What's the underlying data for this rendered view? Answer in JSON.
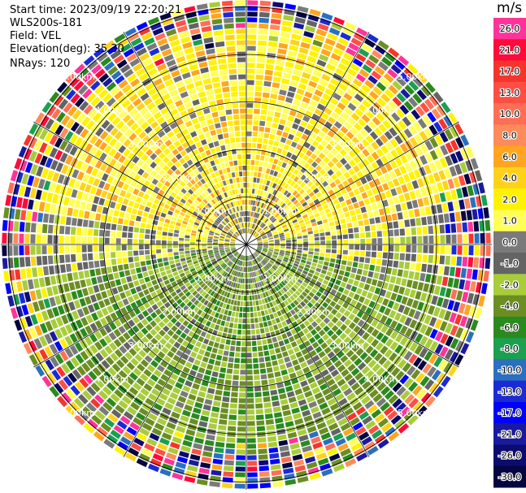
{
  "header": {
    "start_time": "Start time: 2023/09/19 22:20:21",
    "instrument": "WLS200s-181",
    "field": "Field: VEL",
    "elevation": "Elevation(deg): 35.30",
    "nrays": "NRays: 120"
  },
  "colorbar": {
    "unit": "m/s",
    "levels": [
      {
        "label": "26.0",
        "color": "#ff3399"
      },
      {
        "label": "21.0",
        "color": "#ff0a3a"
      },
      {
        "label": "17.0",
        "color": "#f5352c"
      },
      {
        "label": "13.0",
        "color": "#ff4f44"
      },
      {
        "label": "10.0",
        "color": "#ff6e55"
      },
      {
        "label": "8.0",
        "color": "#ff8a5a"
      },
      {
        "label": "6.0",
        "color": "#ffa51f"
      },
      {
        "label": "4.0",
        "color": "#ffd21a"
      },
      {
        "label": "2.0",
        "color": "#fff200"
      },
      {
        "label": "1.0",
        "color": "#ffff55"
      },
      {
        "label": "0.0",
        "color": "#7a7a7a"
      },
      {
        "label": "-1.0",
        "color": "#646464"
      },
      {
        "label": "-2.0",
        "color": "#a8cc3a"
      },
      {
        "label": "-4.0",
        "color": "#6b8e23"
      },
      {
        "label": "-6.0",
        "color": "#2b8a1e"
      },
      {
        "label": "-8.0",
        "color": "#1aa050"
      },
      {
        "label": "-10.0",
        "color": "#2b6fc0"
      },
      {
        "label": "-13.0",
        "color": "#1a2bd6"
      },
      {
        "label": "-17.0",
        "color": "#0000ff"
      },
      {
        "label": "-21.0",
        "color": "#1a1aa0"
      },
      {
        "label": "-26.0",
        "color": "#0b0b70"
      },
      {
        "label": "-30.0",
        "color": "#050540"
      }
    ]
  },
  "chart_data": {
    "type": "heatmap",
    "projection": "polar-ppi",
    "field": "VEL",
    "units": "m/s",
    "nrays": 120,
    "max_range_km": 6.5,
    "range_rings_km": [
      1.0,
      2.0,
      3.0,
      4.0,
      5.0
    ],
    "ring_labels": [
      "1.00km",
      "2.00km",
      "3.00km",
      "4.00km",
      "5.00km"
    ],
    "spokes_deg": [
      0,
      30,
      60,
      90,
      120,
      150,
      180,
      210,
      240,
      270,
      300,
      330
    ],
    "pattern_description": "Positive (yellow/orange, 1 to 6 m/s) velocities to the north within ~4 km; negative (green, -2 to -6 m/s) velocities to the south within ~4 km; noisy mixed colours beyond ~4.5 km range",
    "region_values_mps": {
      "north_inner": [
        1.0,
        2.0,
        4.0,
        6.0
      ],
      "south_inner": [
        -2.0,
        -4.0,
        -6.0
      ],
      "near_zero_band": [
        0.0,
        -1.0
      ],
      "outer_noise_range": [
        -30.0,
        26.0
      ]
    }
  }
}
